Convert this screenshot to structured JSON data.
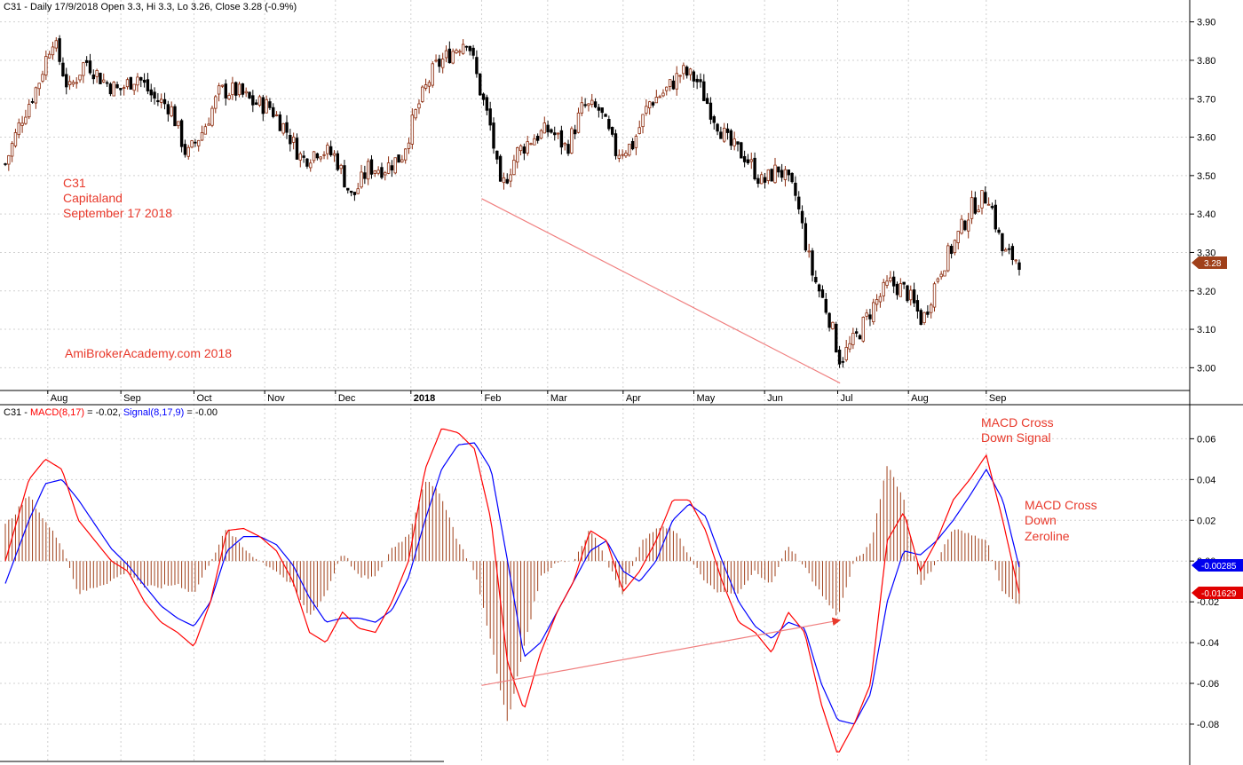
{
  "header": {
    "symbol": "C31",
    "price_info": "C31 - Daily 17/9/2018 Open 3.3, Hi 3.3, Lo 3.26, Close 3.28 (-0.9%)"
  },
  "macd_header": {
    "symbol": "C31 -",
    "macd_label": "MACD(8,17)",
    "macd_value": "= -0.02,",
    "signal_label": "Signal(8,17,9)",
    "signal_value": "= -0.00"
  },
  "annotations": {
    "stock_line1": "C31",
    "stock_line2": "Capitaland",
    "stock_line3": "September 17 2018",
    "watermark": "AmiBrokerAcademy.com  2018",
    "cross_signal_1": "MACD Cross",
    "cross_signal_2": "Down Signal",
    "cross_zero_1": "MACD Cross",
    "cross_zero_2": "Down",
    "cross_zero_3": "Zeroline"
  },
  "value_tags": {
    "price": "3.28",
    "signal": "-0.00285",
    "macd": "-0.01629"
  },
  "colors": {
    "bull": "#8b2a0c",
    "bear": "#000000",
    "macd": "#ff0000",
    "signal": "#0000ff",
    "hist": "#a0401a",
    "grid": "#d0d0d0",
    "annotation": "#e8392b",
    "price_tag": "#a0401a",
    "signal_tag": "#0000ee",
    "macd_tag": "#e00000"
  },
  "chart_data": [
    {
      "type": "candlestick",
      "title": "C31 - Daily 17/9/2018 Open 3.3, Hi 3.3, Lo 3.26, Close 3.28 (-0.9%)",
      "x_tick_labels": [
        "Aug",
        "Sep",
        "Oct",
        "Nov",
        "Dec",
        "2018",
        "Feb",
        "Mar",
        "Apr",
        "May",
        "Jun",
        "Jul",
        "Aug",
        "Sep"
      ],
      "y_tick_labels": [
        "3.00",
        "3.10",
        "3.20",
        "3.30",
        "3.40",
        "3.50",
        "3.60",
        "3.70",
        "3.80",
        "3.90"
      ],
      "ylim": [
        2.95,
        3.92
      ],
      "last_close": 3.28,
      "grid": true,
      "close_path": [
        {
          "d": "2017-07-14",
          "c": 3.53
        },
        {
          "d": "2017-07-21",
          "c": 3.65
        },
        {
          "d": "2017-07-28",
          "c": 3.74
        },
        {
          "d": "2017-08-03",
          "c": 3.86
        },
        {
          "d": "2017-08-10",
          "c": 3.72
        },
        {
          "d": "2017-08-17",
          "c": 3.8
        },
        {
          "d": "2017-08-24",
          "c": 3.75
        },
        {
          "d": "2017-08-31",
          "c": 3.72
        },
        {
          "d": "2017-09-08",
          "c": 3.76
        },
        {
          "d": "2017-09-15",
          "c": 3.7
        },
        {
          "d": "2017-09-22",
          "c": 3.68
        },
        {
          "d": "2017-09-29",
          "c": 3.55
        },
        {
          "d": "2017-10-06",
          "c": 3.62
        },
        {
          "d": "2017-10-13",
          "c": 3.72
        },
        {
          "d": "2017-10-20",
          "c": 3.72
        },
        {
          "d": "2017-10-27",
          "c": 3.69
        },
        {
          "d": "2017-11-03",
          "c": 3.68
        },
        {
          "d": "2017-11-10",
          "c": 3.62
        },
        {
          "d": "2017-11-17",
          "c": 3.54
        },
        {
          "d": "2017-11-24",
          "c": 3.57
        },
        {
          "d": "2017-12-01",
          "c": 3.55
        },
        {
          "d": "2017-12-08",
          "c": 3.44
        },
        {
          "d": "2017-12-15",
          "c": 3.52
        },
        {
          "d": "2017-12-22",
          "c": 3.52
        },
        {
          "d": "2017-12-29",
          "c": 3.55
        },
        {
          "d": "2018-01-05",
          "c": 3.68
        },
        {
          "d": "2018-01-12",
          "c": 3.78
        },
        {
          "d": "2018-01-19",
          "c": 3.82
        },
        {
          "d": "2018-01-26",
          "c": 3.86
        },
        {
          "d": "2018-01-31",
          "c": 3.73
        },
        {
          "d": "2018-02-05",
          "c": 3.62
        },
        {
          "d": "2018-02-09",
          "c": 3.46
        },
        {
          "d": "2018-02-16",
          "c": 3.56
        },
        {
          "d": "2018-02-23",
          "c": 3.6
        },
        {
          "d": "2018-03-02",
          "c": 3.62
        },
        {
          "d": "2018-03-09",
          "c": 3.57
        },
        {
          "d": "2018-03-16",
          "c": 3.68
        },
        {
          "d": "2018-03-23",
          "c": 3.67
        },
        {
          "d": "2018-03-30",
          "c": 3.56
        },
        {
          "d": "2018-04-06",
          "c": 3.58
        },
        {
          "d": "2018-04-13",
          "c": 3.69
        },
        {
          "d": "2018-04-20",
          "c": 3.72
        },
        {
          "d": "2018-04-27",
          "c": 3.77
        },
        {
          "d": "2018-05-03",
          "c": 3.75
        },
        {
          "d": "2018-05-10",
          "c": 3.66
        },
        {
          "d": "2018-05-17",
          "c": 3.58
        },
        {
          "d": "2018-05-24",
          "c": 3.55
        },
        {
          "d": "2018-05-31",
          "c": 3.48
        },
        {
          "d": "2018-06-07",
          "c": 3.52
        },
        {
          "d": "2018-06-14",
          "c": 3.45
        },
        {
          "d": "2018-06-21",
          "c": 3.25
        },
        {
          "d": "2018-06-28",
          "c": 3.14
        },
        {
          "d": "2018-07-03",
          "c": 3.02
        },
        {
          "d": "2018-07-10",
          "c": 3.08
        },
        {
          "d": "2018-07-17",
          "c": 3.16
        },
        {
          "d": "2018-07-24",
          "c": 3.22
        },
        {
          "d": "2018-07-31",
          "c": 3.2
        },
        {
          "d": "2018-08-07",
          "c": 3.12
        },
        {
          "d": "2018-08-14",
          "c": 3.25
        },
        {
          "d": "2018-08-21",
          "c": 3.33
        },
        {
          "d": "2018-08-28",
          "c": 3.42
        },
        {
          "d": "2018-09-04",
          "c": 3.45
        },
        {
          "d": "2018-09-10",
          "c": 3.3
        },
        {
          "d": "2018-09-17",
          "c": 3.28
        }
      ],
      "trendline": [
        {
          "d": "2018-02-01",
          "y": 3.44
        },
        {
          "d": "2018-07-03",
          "y": 2.96
        }
      ]
    },
    {
      "type": "line",
      "title": "C31 - MACD(8,17) = -0.02, Signal(8,17,9) = -0.00",
      "y_tick_labels": [
        "-0.08",
        "-0.06",
        "-0.04",
        "-0.02",
        "0.00",
        "0.02",
        "0.04",
        "0.06"
      ],
      "ylim": [
        -0.097,
        0.068
      ],
      "series": [
        {
          "name": "MACD(8,17)",
          "values": [
            {
              "d": "2017-07-14",
              "v": 0.0
            },
            {
              "d": "2017-07-24",
              "v": 0.04
            },
            {
              "d": "2017-07-31",
              "v": 0.05
            },
            {
              "d": "2017-08-07",
              "v": 0.045
            },
            {
              "d": "2017-08-14",
              "v": 0.02
            },
            {
              "d": "2017-08-21",
              "v": 0.01
            },
            {
              "d": "2017-08-28",
              "v": 0.0
            },
            {
              "d": "2017-09-04",
              "v": -0.005
            },
            {
              "d": "2017-09-11",
              "v": -0.02
            },
            {
              "d": "2017-09-18",
              "v": -0.03
            },
            {
              "d": "2017-09-25",
              "v": -0.035
            },
            {
              "d": "2017-10-02",
              "v": -0.042
            },
            {
              "d": "2017-10-09",
              "v": -0.02
            },
            {
              "d": "2017-10-16",
              "v": 0.015
            },
            {
              "d": "2017-10-23",
              "v": 0.016
            },
            {
              "d": "2017-10-30",
              "v": 0.012
            },
            {
              "d": "2017-11-06",
              "v": 0.005
            },
            {
              "d": "2017-11-13",
              "v": -0.01
            },
            {
              "d": "2017-11-20",
              "v": -0.035
            },
            {
              "d": "2017-11-27",
              "v": -0.04
            },
            {
              "d": "2017-12-04",
              "v": -0.025
            },
            {
              "d": "2017-12-11",
              "v": -0.033
            },
            {
              "d": "2017-12-18",
              "v": -0.035
            },
            {
              "d": "2017-12-25",
              "v": -0.02
            },
            {
              "d": "2018-01-01",
              "v": 0.0
            },
            {
              "d": "2018-01-08",
              "v": 0.045
            },
            {
              "d": "2018-01-15",
              "v": 0.065
            },
            {
              "d": "2018-01-22",
              "v": 0.063
            },
            {
              "d": "2018-01-29",
              "v": 0.055
            },
            {
              "d": "2018-02-05",
              "v": 0.02
            },
            {
              "d": "2018-02-12",
              "v": -0.05
            },
            {
              "d": "2018-02-19",
              "v": -0.073
            },
            {
              "d": "2018-02-26",
              "v": -0.045
            },
            {
              "d": "2018-03-05",
              "v": -0.025
            },
            {
              "d": "2018-03-12",
              "v": -0.01
            },
            {
              "d": "2018-03-19",
              "v": 0.015
            },
            {
              "d": "2018-03-26",
              "v": 0.01
            },
            {
              "d": "2018-04-02",
              "v": -0.015
            },
            {
              "d": "2018-04-09",
              "v": -0.005
            },
            {
              "d": "2018-04-16",
              "v": 0.01
            },
            {
              "d": "2018-04-23",
              "v": 0.03
            },
            {
              "d": "2018-04-30",
              "v": 0.03
            },
            {
              "d": "2018-05-07",
              "v": 0.015
            },
            {
              "d": "2018-05-14",
              "v": -0.01
            },
            {
              "d": "2018-05-21",
              "v": -0.03
            },
            {
              "d": "2018-05-28",
              "v": -0.035
            },
            {
              "d": "2018-06-04",
              "v": -0.045
            },
            {
              "d": "2018-06-11",
              "v": -0.025
            },
            {
              "d": "2018-06-18",
              "v": -0.035
            },
            {
              "d": "2018-06-25",
              "v": -0.07
            },
            {
              "d": "2018-07-02",
              "v": -0.095
            },
            {
              "d": "2018-07-09",
              "v": -0.08
            },
            {
              "d": "2018-07-16",
              "v": -0.06
            },
            {
              "d": "2018-07-23",
              "v": 0.01
            },
            {
              "d": "2018-07-30",
              "v": 0.024
            },
            {
              "d": "2018-08-06",
              "v": -0.005
            },
            {
              "d": "2018-08-13",
              "v": 0.01
            },
            {
              "d": "2018-08-20",
              "v": 0.03
            },
            {
              "d": "2018-08-27",
              "v": 0.04
            },
            {
              "d": "2018-09-03",
              "v": 0.052
            },
            {
              "d": "2018-09-10",
              "v": 0.02
            },
            {
              "d": "2018-09-17",
              "v": -0.016
            }
          ]
        },
        {
          "name": "Signal(8,17,9)",
          "values": [
            {
              "d": "2017-07-14",
              "v": -0.011
            },
            {
              "d": "2017-07-24",
              "v": 0.02
            },
            {
              "d": "2017-07-31",
              "v": 0.038
            },
            {
              "d": "2017-08-07",
              "v": 0.04
            },
            {
              "d": "2017-08-14",
              "v": 0.03
            },
            {
              "d": "2017-08-21",
              "v": 0.018
            },
            {
              "d": "2017-08-28",
              "v": 0.006
            },
            {
              "d": "2017-09-04",
              "v": -0.002
            },
            {
              "d": "2017-09-11",
              "v": -0.012
            },
            {
              "d": "2017-09-18",
              "v": -0.022
            },
            {
              "d": "2017-09-25",
              "v": -0.028
            },
            {
              "d": "2017-10-02",
              "v": -0.032
            },
            {
              "d": "2017-10-09",
              "v": -0.02
            },
            {
              "d": "2017-10-16",
              "v": 0.005
            },
            {
              "d": "2017-10-23",
              "v": 0.012
            },
            {
              "d": "2017-10-30",
              "v": 0.012
            },
            {
              "d": "2017-11-06",
              "v": 0.008
            },
            {
              "d": "2017-11-13",
              "v": -0.002
            },
            {
              "d": "2017-11-20",
              "v": -0.018
            },
            {
              "d": "2017-11-27",
              "v": -0.03
            },
            {
              "d": "2017-12-04",
              "v": -0.028
            },
            {
              "d": "2017-12-11",
              "v": -0.028
            },
            {
              "d": "2017-12-18",
              "v": -0.03
            },
            {
              "d": "2017-12-25",
              "v": -0.024
            },
            {
              "d": "2018-01-01",
              "v": -0.008
            },
            {
              "d": "2018-01-08",
              "v": 0.02
            },
            {
              "d": "2018-01-15",
              "v": 0.045
            },
            {
              "d": "2018-01-22",
              "v": 0.057
            },
            {
              "d": "2018-01-29",
              "v": 0.058
            },
            {
              "d": "2018-02-05",
              "v": 0.045
            },
            {
              "d": "2018-02-12",
              "v": 0.0
            },
            {
              "d": "2018-02-19",
              "v": -0.047
            },
            {
              "d": "2018-02-26",
              "v": -0.04
            },
            {
              "d": "2018-03-05",
              "v": -0.025
            },
            {
              "d": "2018-03-12",
              "v": -0.01
            },
            {
              "d": "2018-03-19",
              "v": 0.005
            },
            {
              "d": "2018-03-26",
              "v": 0.01
            },
            {
              "d": "2018-04-02",
              "v": -0.005
            },
            {
              "d": "2018-04-09",
              "v": -0.01
            },
            {
              "d": "2018-04-16",
              "v": 0.0
            },
            {
              "d": "2018-04-23",
              "v": 0.02
            },
            {
              "d": "2018-04-30",
              "v": 0.028
            },
            {
              "d": "2018-05-07",
              "v": 0.022
            },
            {
              "d": "2018-05-14",
              "v": 0.0
            },
            {
              "d": "2018-05-21",
              "v": -0.02
            },
            {
              "d": "2018-05-28",
              "v": -0.032
            },
            {
              "d": "2018-06-04",
              "v": -0.038
            },
            {
              "d": "2018-06-11",
              "v": -0.03
            },
            {
              "d": "2018-06-18",
              "v": -0.033
            },
            {
              "d": "2018-06-25",
              "v": -0.06
            },
            {
              "d": "2018-07-02",
              "v": -0.078
            },
            {
              "d": "2018-07-09",
              "v": -0.08
            },
            {
              "d": "2018-07-16",
              "v": -0.065
            },
            {
              "d": "2018-07-23",
              "v": -0.02
            },
            {
              "d": "2018-07-30",
              "v": 0.005
            },
            {
              "d": "2018-08-06",
              "v": 0.003
            },
            {
              "d": "2018-08-13",
              "v": 0.01
            },
            {
              "d": "2018-08-20",
              "v": 0.02
            },
            {
              "d": "2018-08-27",
              "v": 0.032
            },
            {
              "d": "2018-09-03",
              "v": 0.045
            },
            {
              "d": "2018-09-10",
              "v": 0.03
            },
            {
              "d": "2018-09-17",
              "v": -0.003
            }
          ]
        }
      ],
      "trendline": [
        {
          "d": "2018-02-01",
          "v": -0.061
        },
        {
          "d": "2018-07-03",
          "v": -0.029
        }
      ]
    }
  ]
}
